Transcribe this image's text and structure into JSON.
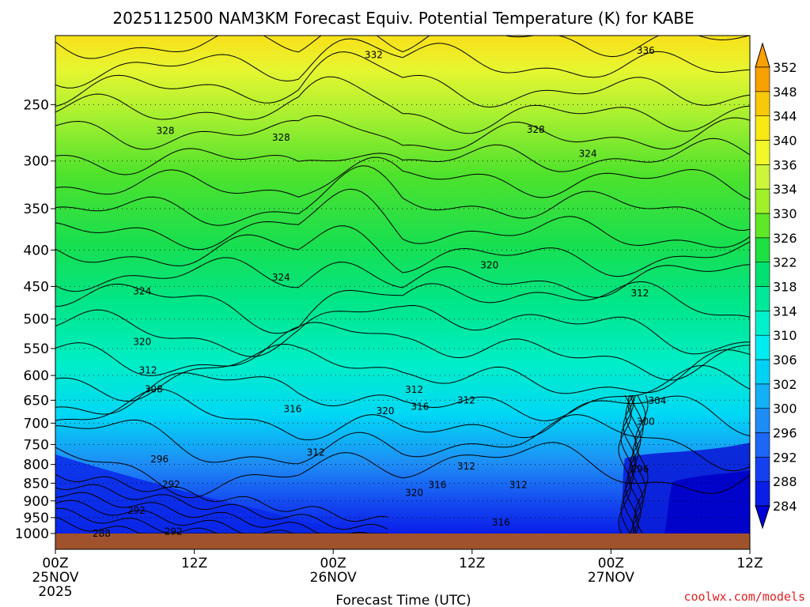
{
  "chart_data": {
    "type": "heatmap",
    "title": "2025112500 NAM3KM Forecast Equiv. Potential Temperature (K) for KABE",
    "xlabel": "Forecast Time (UTC)",
    "ylabel": "",
    "y_scale": "log-pressure",
    "y_reversed": true,
    "x_range_hours": [
      0,
      60
    ],
    "y_range_hpa": [
      200,
      1000
    ],
    "x_ticks": [
      {
        "hour": 0,
        "label": "00Z",
        "sub": "25NOV",
        "sub2": "2025"
      },
      {
        "hour": 12,
        "label": "12Z",
        "sub": "",
        "sub2": ""
      },
      {
        "hour": 24,
        "label": "00Z",
        "sub": "26NOV",
        "sub2": ""
      },
      {
        "hour": 36,
        "label": "12Z",
        "sub": "",
        "sub2": ""
      },
      {
        "hour": 48,
        "label": "00Z",
        "sub": "27NOV",
        "sub2": ""
      },
      {
        "hour": 60,
        "label": "12Z",
        "sub": "",
        "sub2": ""
      }
    ],
    "y_ticks": [
      250,
      300,
      350,
      400,
      450,
      500,
      550,
      600,
      650,
      700,
      750,
      800,
      850,
      900,
      950,
      1000
    ],
    "colorbar": {
      "levels": [
        284,
        288,
        292,
        296,
        300,
        302,
        306,
        310,
        314,
        318,
        322,
        326,
        330,
        334,
        336,
        340,
        344,
        348,
        352
      ],
      "colors": [
        "#0000d8",
        "#0a1ee8",
        "#1440f0",
        "#1e66f5",
        "#1e8cf5",
        "#14b0f5",
        "#00d2f5",
        "#00ecf0",
        "#00f0cc",
        "#00e89a",
        "#00e070",
        "#1ee040",
        "#5ee828",
        "#a0f02a",
        "#cdf53c",
        "#f0f82a",
        "#f8e814",
        "#f8c80a",
        "#f8a000"
      ]
    },
    "contour_labels": [
      {
        "value": "332",
        "hour": 27.5,
        "p": 213
      },
      {
        "value": "336",
        "hour": 51,
        "p": 210
      },
      {
        "value": "328",
        "hour": 9.5,
        "p": 272
      },
      {
        "value": "328",
        "hour": 19.5,
        "p": 278
      },
      {
        "value": "328",
        "hour": 41.5,
        "p": 271
      },
      {
        "value": "324",
        "hour": 46,
        "p": 293
      },
      {
        "value": "320",
        "hour": 37.5,
        "p": 420
      },
      {
        "value": "324",
        "hour": 7.5,
        "p": 457
      },
      {
        "value": "324",
        "hour": 19.5,
        "p": 437
      },
      {
        "value": "312",
        "hour": 50.5,
        "p": 460
      },
      {
        "value": "320",
        "hour": 7.5,
        "p": 538
      },
      {
        "value": "312",
        "hour": 8,
        "p": 590
      },
      {
        "value": "308",
        "hour": 8.5,
        "p": 627
      },
      {
        "value": "316",
        "hour": 20.5,
        "p": 669
      },
      {
        "value": "320",
        "hour": 28.5,
        "p": 673
      },
      {
        "value": "316",
        "hour": 31.5,
        "p": 664
      },
      {
        "value": "312",
        "hour": 31,
        "p": 628
      },
      {
        "value": "312",
        "hour": 35.5,
        "p": 650
      },
      {
        "value": "304",
        "hour": 52,
        "p": 651
      },
      {
        "value": "300",
        "hour": 51,
        "p": 697
      },
      {
        "value": "312",
        "hour": 22.5,
        "p": 770
      },
      {
        "value": "296",
        "hour": 9,
        "p": 787
      },
      {
        "value": "312",
        "hour": 35.5,
        "p": 805
      },
      {
        "value": "296",
        "hour": 50.5,
        "p": 812
      },
      {
        "value": "292",
        "hour": 10,
        "p": 853
      },
      {
        "value": "316",
        "hour": 33,
        "p": 855
      },
      {
        "value": "312",
        "hour": 40,
        "p": 855
      },
      {
        "value": "320",
        "hour": 31,
        "p": 877
      },
      {
        "value": "292",
        "hour": 7,
        "p": 929
      },
      {
        "value": "316",
        "hour": 38.5,
        "p": 965
      },
      {
        "value": "292",
        "hour": 10.2,
        "p": 993
      },
      {
        "value": "288",
        "hour": 4,
        "p": 1000
      }
    ]
  },
  "credit": "coolwx.com/models"
}
